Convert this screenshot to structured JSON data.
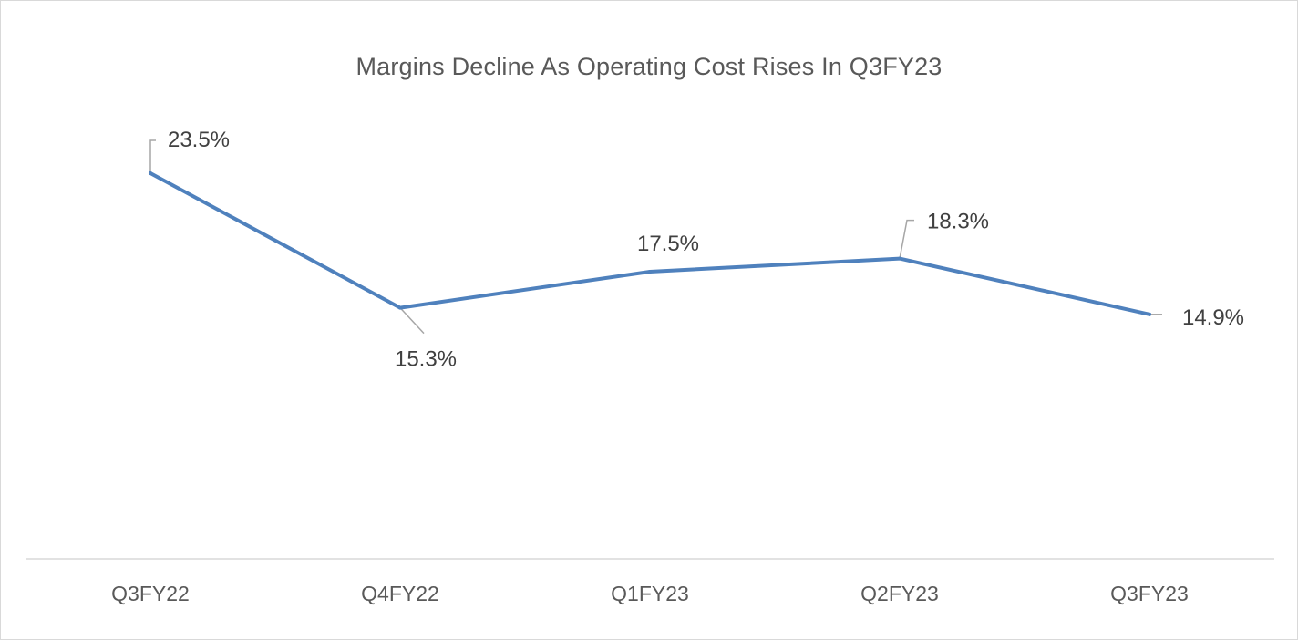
{
  "chart_data": {
    "type": "line",
    "title": "Margins Decline As Operating Cost Rises In Q3FY23",
    "categories": [
      "Q3FY22",
      "Q4FY22",
      "Q1FY23",
      "Q2FY23",
      "Q3FY23"
    ],
    "series": [
      {
        "values": [
          23.5,
          15.3,
          17.5,
          18.3,
          14.9
        ],
        "labels": [
          "23.5%",
          "15.3%",
          "17.5%",
          "18.3%",
          "14.9%"
        ],
        "color": "#4f81bd"
      }
    ],
    "xlabel": "",
    "ylabel": "",
    "ylim": [
      0,
      28
    ],
    "grid": false,
    "legend": "none",
    "value_axis_visible": false,
    "category_axis_line_color": "#d9d9d9",
    "text_color": "#595959"
  }
}
